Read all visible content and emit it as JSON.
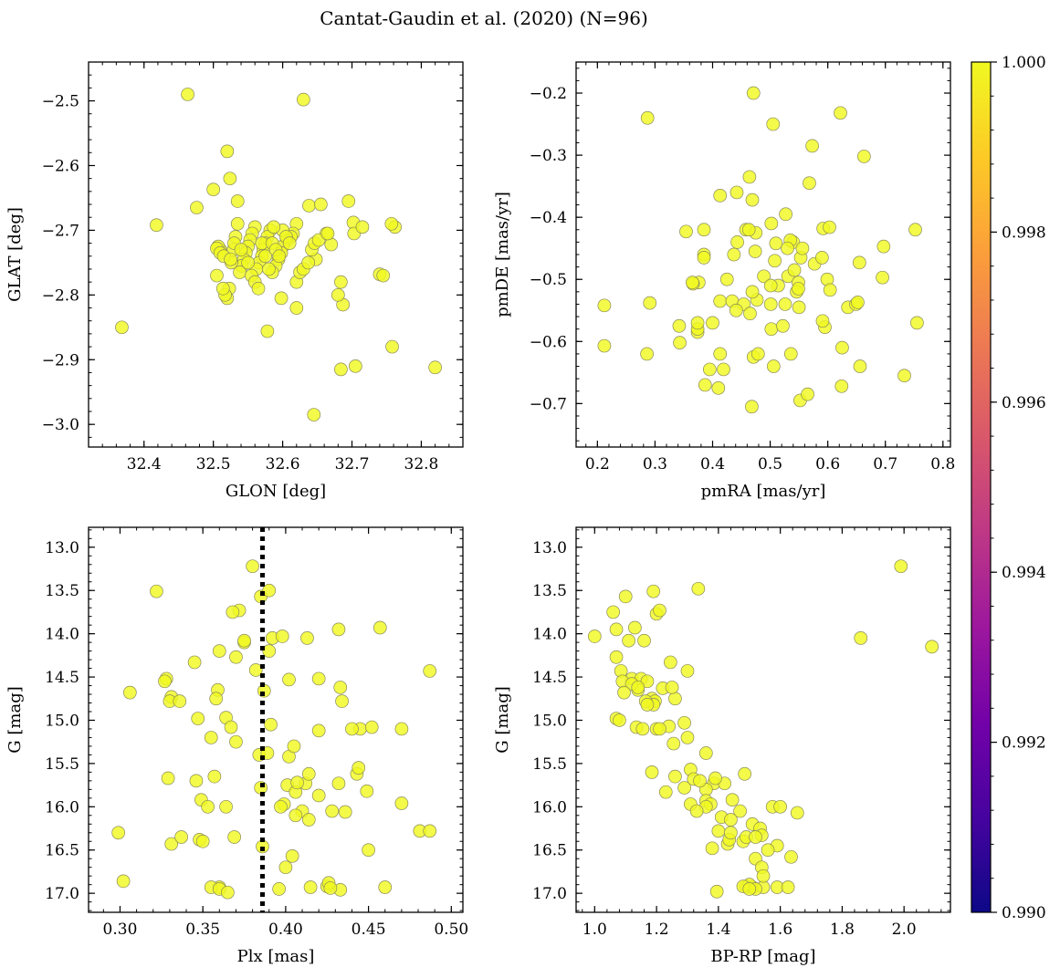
{
  "figure": {
    "title": "Cantat-Gaudin et al. (2020) (N=96)"
  },
  "colors": {
    "point_fill": "#f0f921",
    "point_edge": "#8a8a5a",
    "line": "#000000",
    "cbar_stops": [
      "#0d0887",
      "#46039f",
      "#7201a8",
      "#9c179e",
      "#bd3786",
      "#d8576b",
      "#ed7953",
      "#fb9f3a",
      "#fdca26",
      "#f0f921"
    ]
  },
  "colorbar": {
    "min": 0.99,
    "max": 1.0,
    "ticks": [
      0.99,
      0.992,
      0.994,
      0.996,
      0.998,
      1.0
    ],
    "tick_labels": [
      "0.990",
      "0.992",
      "0.994",
      "0.996",
      "0.998",
      "1.000"
    ]
  },
  "chart_data": [
    {
      "id": "glon-glat",
      "type": "scatter",
      "title": "",
      "xlabel": "GLON [deg]",
      "ylabel": "GLAT [deg]",
      "xlim": [
        32.32,
        32.86
      ],
      "ylim": [
        -3.035,
        -2.44
      ],
      "y_inverted": false,
      "xticks": [
        32.4,
        32.5,
        32.6,
        32.7,
        32.8
      ],
      "xtick_labels": [
        "32.4",
        "32.5",
        "32.6",
        "32.7",
        "32.8"
      ],
      "yticks": [
        -2.5,
        -2.6,
        -2.7,
        -2.8,
        -2.9,
        -3.0
      ],
      "ytick_labels": [
        "−2.5",
        "−2.6",
        "−2.7",
        "−2.8",
        "−2.9",
        "−3.0"
      ],
      "x": [
        32.463,
        32.63,
        32.52,
        32.524,
        32.5,
        32.418,
        32.476,
        32.535,
        32.368,
        32.578,
        32.505,
        32.638,
        32.648,
        32.655,
        32.695,
        32.74,
        32.758,
        32.762,
        32.705,
        32.702,
        32.684,
        32.687,
        32.68,
        32.67,
        32.663,
        32.645,
        32.62,
        32.615,
        32.612,
        32.606,
        32.6,
        32.598,
        32.594,
        32.59,
        32.585,
        32.582,
        32.578,
        32.575,
        32.572,
        32.57,
        32.566,
        32.562,
        32.56,
        32.556,
        32.553,
        32.55,
        32.547,
        32.544,
        32.541,
        32.538,
        32.535,
        32.532,
        32.529,
        32.526,
        32.523,
        32.52,
        32.517,
        32.514,
        32.51,
        32.507,
        32.505,
        32.51,
        32.515,
        32.525,
        32.53,
        32.54,
        32.55,
        32.555,
        32.56,
        32.565,
        32.57,
        32.575,
        32.58,
        32.585,
        32.59,
        32.595,
        32.6,
        32.605,
        32.61,
        32.62,
        32.625,
        32.63,
        32.637,
        32.642,
        32.646,
        32.652,
        32.665,
        32.684,
        32.703,
        32.715,
        32.745,
        32.757,
        32.82,
        32.62,
        32.598,
        32.587
      ],
      "y": [
        -2.49,
        -2.498,
        -2.578,
        -2.62,
        -2.637,
        -2.692,
        -2.665,
        -2.655,
        -2.85,
        -2.856,
        -2.77,
        -2.662,
        -2.745,
        -2.66,
        -2.655,
        -2.768,
        -2.88,
        -2.695,
        -2.91,
        -2.688,
        -2.915,
        -2.815,
        -2.8,
        -2.722,
        -2.705,
        -2.985,
        -2.69,
        -2.705,
        -2.71,
        -2.715,
        -2.725,
        -2.735,
        -2.745,
        -2.755,
        -2.765,
        -2.7,
        -2.71,
        -2.72,
        -2.73,
        -2.74,
        -2.75,
        -2.76,
        -2.695,
        -2.705,
        -2.715,
        -2.725,
        -2.735,
        -2.745,
        -2.755,
        -2.765,
        -2.69,
        -2.71,
        -2.73,
        -2.75,
        -2.79,
        -2.805,
        -2.8,
        -2.79,
        -2.73,
        -2.725,
        -2.728,
        -2.735,
        -2.74,
        -2.745,
        -2.72,
        -2.73,
        -2.75,
        -2.77,
        -2.78,
        -2.79,
        -2.72,
        -2.74,
        -2.76,
        -2.72,
        -2.73,
        -2.74,
        -2.7,
        -2.71,
        -2.72,
        -2.78,
        -2.765,
        -2.76,
        -2.75,
        -2.73,
        -2.72,
        -2.715,
        -2.705,
        -2.78,
        -2.705,
        -2.695,
        -2.77,
        -2.69,
        -2.912,
        -2.82,
        -2.805,
        -2.695
      ],
      "color_values": 1.0
    },
    {
      "id": "pmra-pmde",
      "type": "scatter",
      "title": "",
      "xlabel": "pmRA [mas/yr]",
      "ylabel": "pmDE [mas/yr]",
      "xlim": [
        0.163,
        0.813
      ],
      "ylim": [
        -0.77,
        -0.15
      ],
      "y_inverted": false,
      "xticks": [
        0.2,
        0.3,
        0.4,
        0.5,
        0.6,
        0.7,
        0.8
      ],
      "xtick_labels": [
        "0.2",
        "0.3",
        "0.4",
        "0.5",
        "0.6",
        "0.7",
        "0.8"
      ],
      "yticks": [
        -0.2,
        -0.3,
        -0.4,
        -0.5,
        -0.6,
        -0.7
      ],
      "ytick_labels": [
        "−0.2",
        "−0.3",
        "−0.4",
        "−0.5",
        "−0.6",
        "−0.7"
      ],
      "x": [
        0.287,
        0.471,
        0.622,
        0.505,
        0.573,
        0.663,
        0.464,
        0.568,
        0.413,
        0.469,
        0.354,
        0.385,
        0.458,
        0.475,
        0.502,
        0.527,
        0.54,
        0.553,
        0.592,
        0.603,
        0.752,
        0.697,
        0.385,
        0.437,
        0.385,
        0.425,
        0.489,
        0.514,
        0.531,
        0.549,
        0.577,
        0.599,
        0.655,
        0.695,
        0.376,
        0.366,
        0.413,
        0.434,
        0.454,
        0.477,
        0.501,
        0.526,
        0.55,
        0.604,
        0.635,
        0.649,
        0.212,
        0.291,
        0.342,
        0.374,
        0.4,
        0.441,
        0.465,
        0.502,
        0.522,
        0.542,
        0.595,
        0.625,
        0.656,
        0.212,
        0.286,
        0.343,
        0.374,
        0.413,
        0.471,
        0.506,
        0.536,
        0.591,
        0.624,
        0.652,
        0.733,
        0.755,
        0.387,
        0.41,
        0.419,
        0.468,
        0.479,
        0.552,
        0.565,
        0.59,
        0.374,
        0.556,
        0.474,
        0.51,
        0.535,
        0.546,
        0.469,
        0.501,
        0.53,
        0.508,
        0.549,
        0.463,
        0.443,
        0.395,
        0.365,
        0.442
      ],
      "y": [
        -0.24,
        -0.2,
        -0.232,
        -0.25,
        -0.285,
        -0.302,
        -0.335,
        -0.345,
        -0.365,
        -0.372,
        -0.423,
        -0.42,
        -0.42,
        -0.425,
        -0.41,
        -0.395,
        -0.44,
        -0.465,
        -0.418,
        -0.416,
        -0.42,
        -0.447,
        -0.46,
        -0.46,
        -0.465,
        -0.5,
        -0.495,
        -0.51,
        -0.495,
        -0.505,
        -0.475,
        -0.5,
        -0.473,
        -0.497,
        -0.505,
        -0.507,
        -0.535,
        -0.535,
        -0.54,
        -0.533,
        -0.54,
        -0.54,
        -0.545,
        -0.517,
        -0.545,
        -0.54,
        -0.542,
        -0.538,
        -0.575,
        -0.585,
        -0.57,
        -0.55,
        -0.555,
        -0.58,
        -0.575,
        -0.485,
        -0.577,
        -0.61,
        -0.64,
        -0.607,
        -0.62,
        -0.602,
        -0.58,
        -0.62,
        -0.625,
        -0.64,
        -0.62,
        -0.567,
        -0.672,
        -0.537,
        -0.655,
        -0.57,
        -0.67,
        -0.675,
        -0.645,
        -0.705,
        -0.62,
        -0.695,
        -0.685,
        -0.465,
        -0.57,
        -0.45,
        -0.455,
        -0.442,
        -0.437,
        -0.52,
        -0.52,
        -0.51,
        -0.45,
        -0.47,
        -0.515,
        -0.42,
        -0.44,
        -0.645,
        -0.505,
        -0.36
      ],
      "color_values": 1.0
    },
    {
      "id": "plx-g",
      "type": "scatter",
      "title": "",
      "xlabel": "Plx [mas]",
      "ylabel": "G [mag]",
      "xlim": [
        0.281,
        0.507
      ],
      "ylim": [
        12.77,
        17.22
      ],
      "y_inverted": true,
      "vline": 0.386,
      "xticks": [
        0.3,
        0.35,
        0.4,
        0.45,
        0.5
      ],
      "xtick_labels": [
        "0.30",
        "0.35",
        "0.40",
        "0.45",
        "0.50"
      ],
      "yticks": [
        13.0,
        13.5,
        14.0,
        14.5,
        15.0,
        15.5,
        16.0,
        16.5,
        17.0
      ],
      "ytick_labels": [
        "13.0",
        "13.5",
        "14.0",
        "14.5",
        "15.0",
        "15.5",
        "16.0",
        "16.5",
        "17.0"
      ],
      "x": [
        0.38,
        0.322,
        0.385,
        0.39,
        0.372,
        0.368,
        0.375,
        0.392,
        0.398,
        0.413,
        0.432,
        0.457,
        0.345,
        0.37,
        0.36,
        0.375,
        0.382,
        0.402,
        0.42,
        0.433,
        0.487,
        0.328,
        0.327,
        0.331,
        0.33,
        0.336,
        0.359,
        0.358,
        0.39,
        0.387,
        0.434,
        0.306,
        0.347,
        0.364,
        0.367,
        0.355,
        0.37,
        0.391,
        0.42,
        0.445,
        0.44,
        0.452,
        0.47,
        0.384,
        0.389,
        0.402,
        0.405,
        0.412,
        0.414,
        0.329,
        0.346,
        0.357,
        0.385,
        0.401,
        0.42,
        0.432,
        0.443,
        0.444,
        0.449,
        0.349,
        0.353,
        0.364,
        0.399,
        0.406,
        0.41,
        0.414,
        0.428,
        0.436,
        0.45,
        0.47,
        0.481,
        0.487,
        0.299,
        0.331,
        0.337,
        0.348,
        0.369,
        0.386,
        0.404,
        0.425,
        0.433,
        0.36,
        0.355,
        0.36,
        0.365,
        0.35,
        0.4,
        0.415,
        0.426,
        0.427,
        0.407,
        0.302,
        0.396,
        0.397,
        0.406,
        0.46
      ],
      "y": [
        13.22,
        13.51,
        13.57,
        13.5,
        13.73,
        13.75,
        14.1,
        14.05,
        14.03,
        14.05,
        13.95,
        13.93,
        14.33,
        14.27,
        14.2,
        14.08,
        14.42,
        14.53,
        14.52,
        14.62,
        14.43,
        14.52,
        14.55,
        14.73,
        14.78,
        14.78,
        14.65,
        14.75,
        14.2,
        14.66,
        14.78,
        14.68,
        14.98,
        14.97,
        15.08,
        15.2,
        15.25,
        15.05,
        15.12,
        15.1,
        15.1,
        15.08,
        15.1,
        15.4,
        15.38,
        15.42,
        15.3,
        15.73,
        15.62,
        15.67,
        15.7,
        15.65,
        15.78,
        15.75,
        15.87,
        15.73,
        15.62,
        15.55,
        15.82,
        15.92,
        16.0,
        16.0,
        15.97,
        15.83,
        16.05,
        16.15,
        16.05,
        16.06,
        16.5,
        15.96,
        16.28,
        16.28,
        16.3,
        16.43,
        16.35,
        16.38,
        16.35,
        16.46,
        16.57,
        16.92,
        16.96,
        16.93,
        16.93,
        16.95,
        16.99,
        16.4,
        16.7,
        16.93,
        16.88,
        16.94,
        15.72,
        16.86,
        16.95,
        16.0,
        16.1,
        16.93
      ],
      "color_values": 1.0
    },
    {
      "id": "bprp-g",
      "type": "scatter",
      "title": "",
      "xlabel": "BP-RP [mag]",
      "ylabel": "G [mag]",
      "xlim": [
        0.94,
        2.15
      ],
      "ylim": [
        12.77,
        17.22
      ],
      "y_inverted": true,
      "xticks": [
        1.0,
        1.2,
        1.4,
        1.6,
        1.8,
        2.0
      ],
      "xtick_labels": [
        "1.0",
        "1.2",
        "1.4",
        "1.6",
        "1.8",
        "2.0"
      ],
      "yticks": [
        13.0,
        13.5,
        14.0,
        14.5,
        15.0,
        15.5,
        16.0,
        16.5,
        17.0
      ],
      "ytick_labels": [
        "13.0",
        "13.5",
        "14.0",
        "14.5",
        "15.0",
        "15.5",
        "16.0",
        "16.5",
        "17.0"
      ],
      "x": [
        1.99,
        1.335,
        1.19,
        1.1,
        1.06,
        1.2,
        1.21,
        1.13,
        1.07,
        1.11,
        1.16,
        1.0,
        2.09,
        1.86,
        1.07,
        1.245,
        1.3,
        1.085,
        1.12,
        1.15,
        1.17,
        1.09,
        1.14,
        1.185,
        1.22,
        1.26,
        1.195,
        1.19,
        1.165,
        1.25,
        1.07,
        1.135,
        1.155,
        1.2,
        1.24,
        1.29,
        1.255,
        1.36,
        1.3,
        1.185,
        1.26,
        1.31,
        1.385,
        1.485,
        1.42,
        1.36,
        1.39,
        1.32,
        1.34,
        1.29,
        1.23,
        1.36,
        1.445,
        1.31,
        1.375,
        1.36,
        1.47,
        1.4,
        1.575,
        1.6,
        1.655,
        1.33,
        1.41,
        1.44,
        1.48,
        1.43,
        1.51,
        1.535,
        1.54,
        1.49,
        1.52,
        1.54,
        1.435,
        1.59,
        1.635,
        1.38,
        1.56,
        1.44,
        1.49,
        1.51,
        1.545,
        1.59,
        1.5,
        1.395,
        1.52,
        1.48,
        1.625,
        1.5,
        1.545,
        1.52,
        1.21,
        1.17,
        1.12,
        1.095,
        1.14,
        1.08
      ],
      "y": [
        13.22,
        13.48,
        13.51,
        13.57,
        13.75,
        13.77,
        13.73,
        13.93,
        13.95,
        14.08,
        14.08,
        14.03,
        14.15,
        14.05,
        14.27,
        14.33,
        14.43,
        14.43,
        14.52,
        14.52,
        14.55,
        14.55,
        14.65,
        14.75,
        14.63,
        14.75,
        14.78,
        14.82,
        14.78,
        14.62,
        14.98,
        15.08,
        15.1,
        15.1,
        15.07,
        15.03,
        15.27,
        15.38,
        15.2,
        15.6,
        15.65,
        15.57,
        15.73,
        15.62,
        15.73,
        15.8,
        15.67,
        15.68,
        15.7,
        15.78,
        15.83,
        15.93,
        15.92,
        15.97,
        15.97,
        16.0,
        16.05,
        16.28,
        16.0,
        16.0,
        16.07,
        16.05,
        16.12,
        16.15,
        16.4,
        16.43,
        16.2,
        16.25,
        16.33,
        16.35,
        16.6,
        16.7,
        16.38,
        16.45,
        16.58,
        16.48,
        16.5,
        16.3,
        16.92,
        16.93,
        16.93,
        16.93,
        16.9,
        16.98,
        16.95,
        16.92,
        16.93,
        16.95,
        16.8,
        16.35,
        15.1,
        14.82,
        14.58,
        14.68,
        14.62,
        15.0
      ],
      "color_values": 1.0
    }
  ]
}
